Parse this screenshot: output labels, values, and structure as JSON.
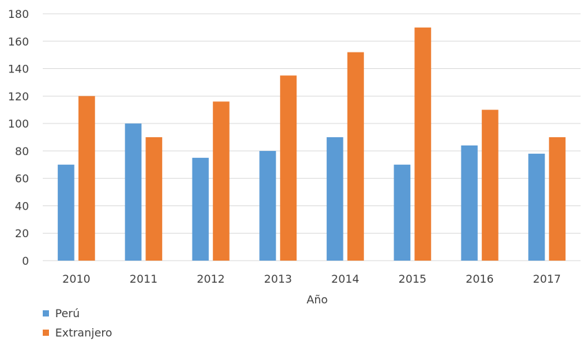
{
  "chart_data": {
    "type": "bar",
    "categories": [
      "2010",
      "2011",
      "2012",
      "2013",
      "2014",
      "2015",
      "2016",
      "2017"
    ],
    "series": [
      {
        "name": "Perú",
        "color": "#5b9bd5",
        "values": [
          70,
          100,
          75,
          80,
          90,
          70,
          84,
          78
        ]
      },
      {
        "name": "Extranjero",
        "color": "#ed7d31",
        "values": [
          120,
          90,
          116,
          135,
          152,
          170,
          110,
          90
        ]
      }
    ],
    "title": "",
    "xlabel": "Año",
    "ylabel": "",
    "ylim": [
      0,
      180
    ],
    "yticks": [
      0,
      20,
      40,
      60,
      80,
      100,
      120,
      140,
      160,
      180
    ],
    "grid": true,
    "legend_position": "bottom-left"
  }
}
